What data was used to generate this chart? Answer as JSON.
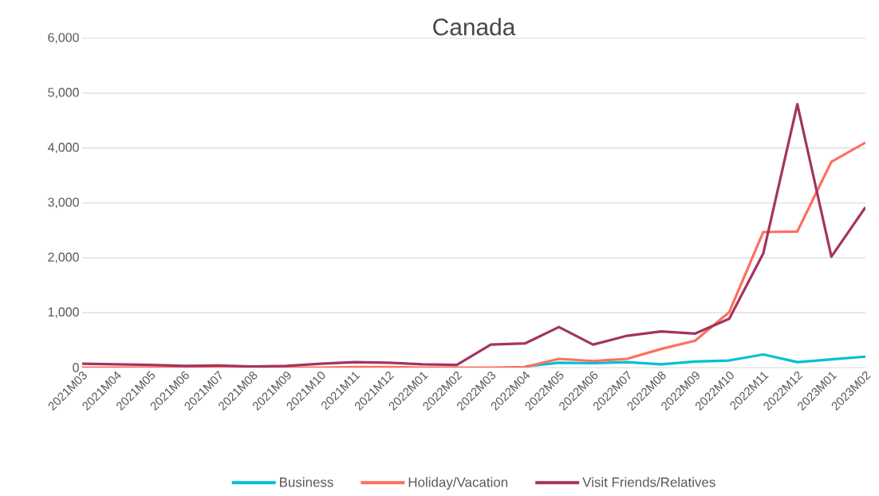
{
  "chart_data": {
    "type": "line",
    "title": "Canada",
    "categories": [
      "2021M03",
      "2021M04",
      "2021M05",
      "2021M06",
      "2021M07",
      "2021M08",
      "2021M09",
      "2021M10",
      "2021M11",
      "2021M12",
      "2022M01",
      "2022M02",
      "2022M03",
      "2022M04",
      "2022M05",
      "2022M06",
      "2022M07",
      "2022M08",
      "2022M09",
      "2022M10",
      "2022M11",
      "2022M12",
      "2023M01",
      "2023M02"
    ],
    "series": [
      {
        "name": "Business",
        "color": "#00c0d4",
        "values": [
          null,
          null,
          null,
          null,
          null,
          null,
          null,
          null,
          null,
          null,
          null,
          null,
          null,
          20,
          90,
          80,
          100,
          60,
          110,
          130,
          240,
          100,
          150,
          200
        ]
      },
      {
        "name": "Holiday/Vacation",
        "color": "#ff6f5e",
        "values": [
          0,
          0,
          0,
          0,
          0,
          0,
          0,
          0,
          10,
          10,
          0,
          0,
          0,
          10,
          160,
          120,
          160,
          340,
          490,
          1010,
          2470,
          2480,
          3750,
          4100
        ]
      },
      {
        "name": "Visit Friends/Relatives",
        "color": "#a4345f",
        "values": [
          70,
          60,
          50,
          30,
          40,
          20,
          30,
          70,
          100,
          90,
          60,
          50,
          420,
          440,
          740,
          420,
          580,
          660,
          620,
          890,
          2080,
          4800,
          2020,
          2920
        ]
      }
    ],
    "ylim": [
      0,
      6000
    ],
    "yticks": [
      {
        "value": 0,
        "label": "0"
      },
      {
        "value": 1000,
        "label": "1,000"
      },
      {
        "value": 2000,
        "label": "2,000"
      },
      {
        "value": 3000,
        "label": "3,000"
      },
      {
        "value": 4000,
        "label": "4,000"
      },
      {
        "value": 5000,
        "label": "5,000"
      },
      {
        "value": 6000,
        "label": "6,000"
      }
    ],
    "grid": "y",
    "legend": "bottom",
    "marker": "none",
    "line_style": "solid"
  }
}
